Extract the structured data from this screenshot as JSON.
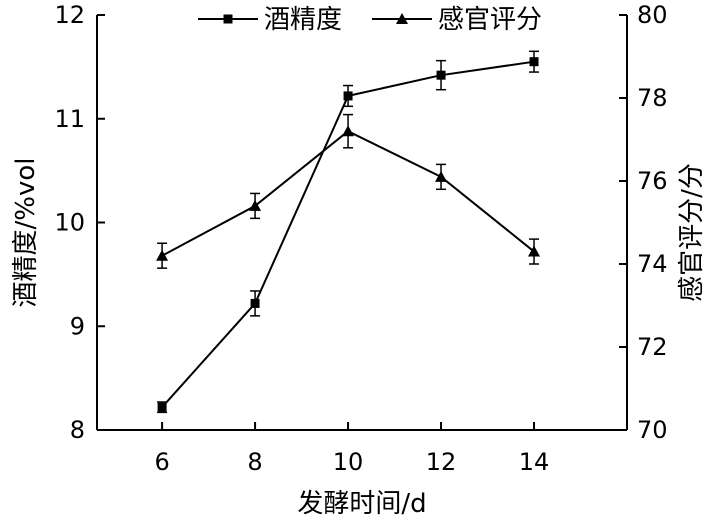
{
  "chart_data": {
    "type": "line",
    "title": "",
    "xlabel": "发酵时间/d",
    "ylabel_left": "酒精度/%vol",
    "ylabel_right": "感官评分/分",
    "x": [
      6,
      8,
      10,
      12,
      14
    ],
    "xlim": [
      4.6,
      16.0
    ],
    "ylim_left": [
      8,
      12
    ],
    "ylim_right": [
      70,
      80
    ],
    "x_ticks": [
      6,
      8,
      10,
      12,
      14
    ],
    "y_left_ticks": [
      8,
      9,
      10,
      11,
      12
    ],
    "y_right_ticks": [
      70,
      72,
      74,
      76,
      78,
      80
    ],
    "legend_position": "top",
    "grid": false,
    "series": [
      {
        "name": "酒精度",
        "axis": "left",
        "marker": "square",
        "values": [
          8.22,
          9.22,
          11.22,
          11.42,
          11.55
        ],
        "errors": [
          0.05,
          0.12,
          0.1,
          0.14,
          0.1
        ]
      },
      {
        "name": "感官评分",
        "axis": "right",
        "marker": "triangle",
        "values": [
          74.2,
          75.4,
          77.2,
          76.1,
          74.3
        ],
        "errors": [
          0.3,
          0.3,
          0.4,
          0.3,
          0.3
        ]
      }
    ]
  }
}
